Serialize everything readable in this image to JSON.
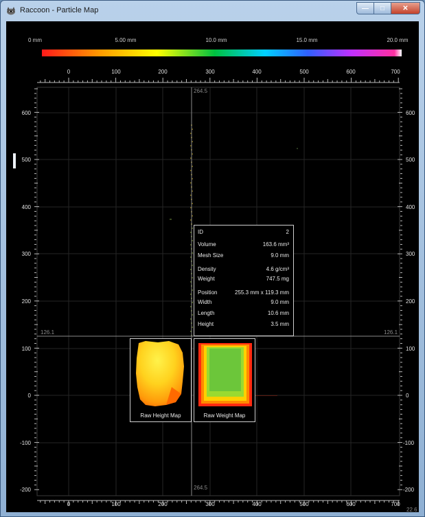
{
  "window": {
    "title": "Raccoon - Particle Map",
    "buttons": {
      "minimize": "—",
      "maximize": "□",
      "close": "✕"
    },
    "icon": "raccoon-app-icon"
  },
  "colorbar": {
    "labels": [
      "0 mm",
      "5.00 mm",
      "10.0 mm",
      "15.0 mm",
      "20.0 mm"
    ],
    "colors": [
      "#ff1a1a",
      "#ff9a00",
      "#ffff00",
      "#00c040",
      "#00d0ff",
      "#3060ff",
      "#c030ff",
      "#ff30a0",
      "#ffffff"
    ]
  },
  "axes": {
    "x_ticks": [
      "0",
      "100",
      "200",
      "300",
      "400",
      "500",
      "600",
      "700"
    ],
    "y_ticks": [
      "600",
      "500",
      "400",
      "300",
      "200",
      "100",
      "0",
      "-100",
      "-200"
    ]
  },
  "crosshair": {
    "x_value_top": "264.5",
    "x_value_bottom": "264.5",
    "y_value_left": "126.1",
    "y_value_right": "126.1",
    "corner_value": "22.6"
  },
  "particle_info": {
    "rows": [
      {
        "label": "ID",
        "value": "2"
      },
      {
        "label": "Volume",
        "value": "163.6 mm³"
      },
      {
        "label": "Mesh Size",
        "value": "9.0 mm"
      },
      {
        "label": "Density",
        "value": "4.6 g/cm³"
      },
      {
        "label": "Weight",
        "value": "747.5 mg"
      },
      {
        "label": "Position",
        "value": "255.3 mm x 119.3 mm"
      },
      {
        "label": "Width",
        "value": "9.0 mm"
      },
      {
        "label": "Length",
        "value": "10.6 mm"
      },
      {
        "label": "Height",
        "value": "3.5 mm"
      }
    ]
  },
  "maps": {
    "height_map_label": "Raw Height Map",
    "weight_map_label": "Raw Weight Map"
  }
}
